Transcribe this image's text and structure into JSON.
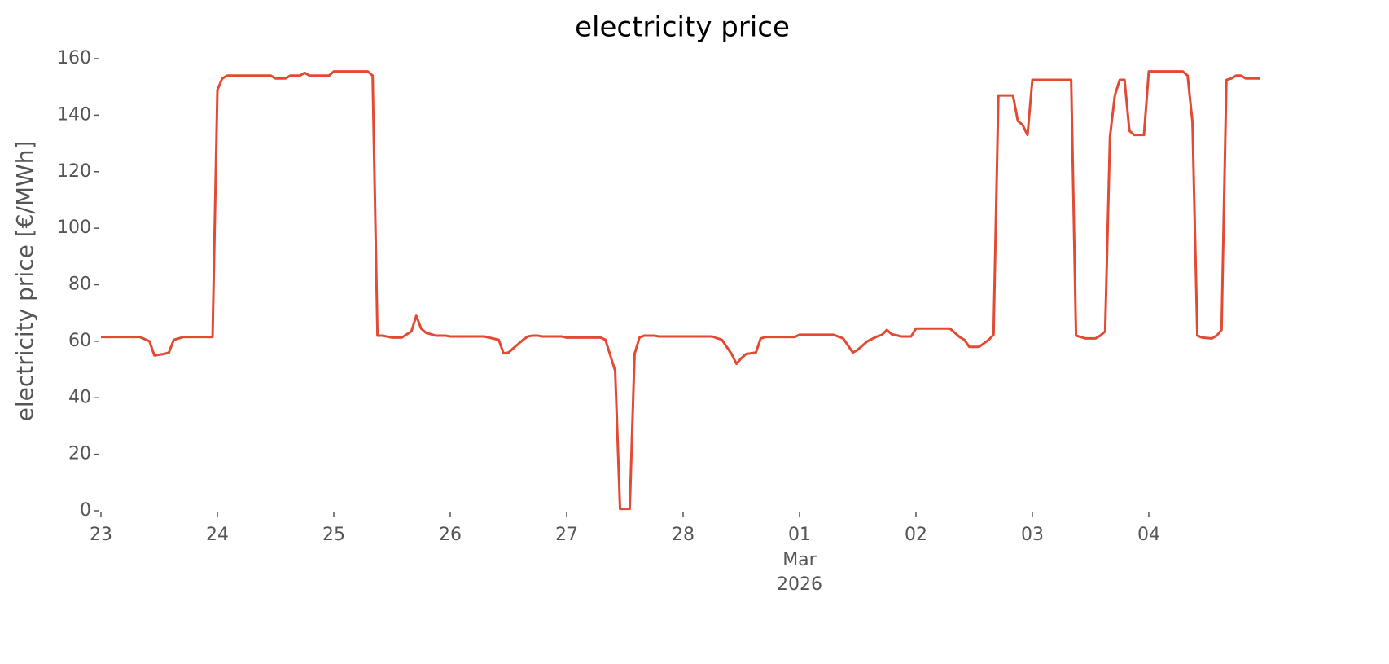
{
  "chart_data": {
    "type": "line",
    "title": "electricity price",
    "ylabel": "electricity price [€/MWh]",
    "ylim": [
      0,
      160
    ],
    "yticks": [
      0,
      20,
      40,
      60,
      80,
      100,
      120,
      140,
      160
    ],
    "xlim": [
      "2026-02-23T00:00",
      "2026-03-04T23:00"
    ],
    "xticks": [
      {
        "value": "2026-02-23T00:00",
        "label": "23"
      },
      {
        "value": "2026-02-24T00:00",
        "label": "24"
      },
      {
        "value": "2026-02-25T00:00",
        "label": "25"
      },
      {
        "value": "2026-02-26T00:00",
        "label": "26"
      },
      {
        "value": "2026-02-27T00:00",
        "label": "27"
      },
      {
        "value": "2026-02-28T00:00",
        "label": "28"
      },
      {
        "value": "2026-03-01T00:00",
        "label": "01"
      },
      {
        "value": "2026-03-02T00:00",
        "label": "02"
      },
      {
        "value": "2026-03-03T00:00",
        "label": "03"
      },
      {
        "value": "2026-03-04T00:00",
        "label": "04"
      }
    ],
    "xtick_secondary": {
      "value": "2026-03-01T00:00",
      "lines": [
        "Mar",
        "2026"
      ]
    },
    "grid": false,
    "series": [
      {
        "name": "electricity price",
        "color": "#e24a33",
        "x": [
          "2026-02-23T00:00",
          "2026-02-23T08:00",
          "2026-02-23T10:00",
          "2026-02-23T11:00",
          "2026-02-23T13:00",
          "2026-02-23T14:00",
          "2026-02-23T15:00",
          "2026-02-23T17:00",
          "2026-02-23T23:00",
          "2026-02-24T00:00",
          "2026-02-24T01:00",
          "2026-02-24T02:00",
          "2026-02-24T11:00",
          "2026-02-24T12:00",
          "2026-02-24T14:00",
          "2026-02-24T15:00",
          "2026-02-24T17:00",
          "2026-02-24T18:00",
          "2026-02-24T19:00",
          "2026-02-24T23:00",
          "2026-02-25T00:00",
          "2026-02-25T07:00",
          "2026-02-25T08:00",
          "2026-02-25T09:00",
          "2026-02-25T10:00",
          "2026-02-25T12:00",
          "2026-02-25T14:00",
          "2026-02-25T16:00",
          "2026-02-25T17:00",
          "2026-02-25T18:00",
          "2026-02-25T19:00",
          "2026-02-25T21:00",
          "2026-02-25T23:00",
          "2026-02-26T00:00",
          "2026-02-26T07:00",
          "2026-02-26T10:00",
          "2026-02-26T11:00",
          "2026-02-26T12:00",
          "2026-02-26T13:00",
          "2026-02-26T15:00",
          "2026-02-26T16:00",
          "2026-02-26T17:00",
          "2026-02-26T18:00",
          "2026-02-26T19:00",
          "2026-02-26T23:00",
          "2026-02-27T00:00",
          "2026-02-27T07:00",
          "2026-02-27T08:00",
          "2026-02-27T10:00",
          "2026-02-27T11:00",
          "2026-02-27T13:00",
          "2026-02-27T14:00",
          "2026-02-27T15:00",
          "2026-02-27T16:00",
          "2026-02-27T18:00",
          "2026-02-27T19:00",
          "2026-02-28T00:00",
          "2026-02-28T06:00",
          "2026-02-28T08:00",
          "2026-02-28T10:00",
          "2026-02-28T11:00",
          "2026-02-28T12:00",
          "2026-02-28T13:00",
          "2026-02-28T15:00",
          "2026-02-28T16:00",
          "2026-02-28T17:00",
          "2026-02-28T23:00",
          "2026-03-01T00:00",
          "2026-03-01T07:00",
          "2026-03-01T09:00",
          "2026-03-01T11:00",
          "2026-03-01T12:00",
          "2026-03-01T14:00",
          "2026-03-01T16:00",
          "2026-03-01T17:00",
          "2026-03-01T18:00",
          "2026-03-01T19:00",
          "2026-03-01T21:00",
          "2026-03-01T23:00",
          "2026-03-02T00:00",
          "2026-03-02T07:00",
          "2026-03-02T09:00",
          "2026-03-02T10:00",
          "2026-03-02T11:00",
          "2026-03-02T13:00",
          "2026-03-02T15:00",
          "2026-03-02T16:00",
          "2026-03-02T17:00",
          "2026-03-02T20:00",
          "2026-03-02T21:00",
          "2026-03-02T22:00",
          "2026-03-02T23:00",
          "2026-03-03T00:00",
          "2026-03-03T08:00",
          "2026-03-03T09:00",
          "2026-03-03T10:00",
          "2026-03-03T11:00",
          "2026-03-03T13:00",
          "2026-03-03T14:00",
          "2026-03-03T15:00",
          "2026-03-03T16:00",
          "2026-03-03T17:00",
          "2026-03-03T18:00",
          "2026-03-03T19:00",
          "2026-03-03T20:00",
          "2026-03-03T21:00",
          "2026-03-03T23:00",
          "2026-03-04T00:00",
          "2026-03-04T07:00",
          "2026-03-04T08:00",
          "2026-03-04T09:00",
          "2026-03-04T10:00",
          "2026-03-04T11:00",
          "2026-03-04T13:00",
          "2026-03-04T14:00",
          "2026-03-04T15:00",
          "2026-03-04T16:00",
          "2026-03-04T17:00",
          "2026-03-04T18:00",
          "2026-03-04T19:00",
          "2026-03-04T20:00",
          "2026-03-04T23:00"
        ],
        "values": [
          61.5,
          61.5,
          60,
          55,
          55.5,
          56,
          60.5,
          61.5,
          61.5,
          149,
          153,
          154,
          154,
          153,
          153,
          154,
          154,
          155,
          154,
          154,
          155.5,
          155.5,
          154,
          62,
          62,
          61.3,
          61.3,
          63.5,
          69,
          64.5,
          63,
          62,
          62,
          61.7,
          61.7,
          60.5,
          55.7,
          56,
          57.5,
          60.5,
          61.7,
          62,
          62,
          61.7,
          61.7,
          61.3,
          61.3,
          60.5,
          49.5,
          0.7,
          0.7,
          55.5,
          61.3,
          62,
          62,
          61.7,
          61.7,
          61.7,
          60.5,
          55.5,
          52,
          54,
          55.5,
          56,
          61,
          61.5,
          61.5,
          62.3,
          62.3,
          61,
          56,
          57,
          60,
          61.7,
          62.3,
          64,
          62.5,
          61.7,
          61.7,
          64.5,
          64.5,
          61.5,
          60.5,
          58,
          58,
          60.5,
          62.3,
          147,
          147,
          138,
          136.5,
          133,
          152.5,
          152.5,
          62,
          61.5,
          61,
          61,
          62,
          63.5,
          132.5,
          147,
          152.5,
          152.5,
          134.5,
          133,
          133,
          155.5,
          155.5,
          154,
          137.5,
          62,
          61.3,
          61,
          62,
          64,
          152.5,
          153,
          154,
          154,
          153,
          153
        ]
      }
    ]
  }
}
